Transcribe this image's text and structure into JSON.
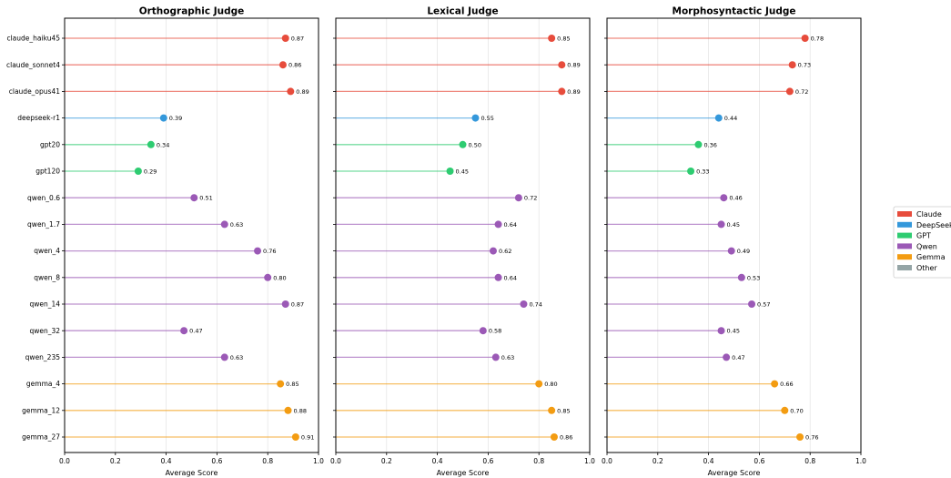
{
  "chart_data": {
    "type": "lollipop",
    "categories": [
      "claude_haiku45",
      "claude_sonnet4",
      "claude_opus41",
      "deepseek-r1",
      "gpt20",
      "gpt120",
      "qwen_0.6",
      "qwen_1.7",
      "qwen_4",
      "qwen_8",
      "qwen_14",
      "qwen_32",
      "qwen_235",
      "gemma_4",
      "gemma_12",
      "gemma_27"
    ],
    "groups": [
      "Claude",
      "Claude",
      "Claude",
      "DeepSeek",
      "GPT",
      "GPT",
      "Qwen",
      "Qwen",
      "Qwen",
      "Qwen",
      "Qwen",
      "Qwen",
      "Qwen",
      "Gemma",
      "Gemma",
      "Gemma"
    ],
    "group_colors": {
      "Claude": "#e74c3c",
      "DeepSeek": "#3498db",
      "GPT": "#2ecc71",
      "Qwen": "#9b59b6",
      "Gemma": "#f39c12",
      "Other": "#95a5a6"
    },
    "panels": [
      {
        "title": "Orthographic Judge",
        "values": [
          0.87,
          0.86,
          0.89,
          0.39,
          0.34,
          0.29,
          0.51,
          0.63,
          0.76,
          0.8,
          0.87,
          0.47,
          0.63,
          0.85,
          0.88,
          0.91
        ]
      },
      {
        "title": "Lexical Judge",
        "values": [
          0.85,
          0.89,
          0.89,
          0.55,
          0.5,
          0.45,
          0.72,
          0.64,
          0.62,
          0.64,
          0.74,
          0.58,
          0.63,
          0.8,
          0.85,
          0.86
        ]
      },
      {
        "title": "Morphosyntactic Judge",
        "values": [
          0.78,
          0.73,
          0.72,
          0.44,
          0.36,
          0.33,
          0.46,
          0.45,
          0.49,
          0.53,
          0.57,
          0.45,
          0.47,
          0.66,
          0.7,
          0.76
        ]
      }
    ],
    "xlabel": "Average Score",
    "xlim": [
      0.0,
      1.0
    ],
    "xticks": [
      "0.0",
      "0.2",
      "0.4",
      "0.6",
      "0.8",
      "1.0"
    ],
    "grid": true,
    "legend": {
      "placement": "right",
      "entries": [
        {
          "label": "Claude",
          "group": "Claude"
        },
        {
          "label": "DeepSeek",
          "group": "DeepSeek"
        },
        {
          "label": "GPT",
          "group": "GPT"
        },
        {
          "label": "Qwen",
          "group": "Qwen"
        },
        {
          "label": "Gemma",
          "group": "Gemma"
        },
        {
          "label": "Other",
          "group": "Other"
        }
      ]
    }
  }
}
